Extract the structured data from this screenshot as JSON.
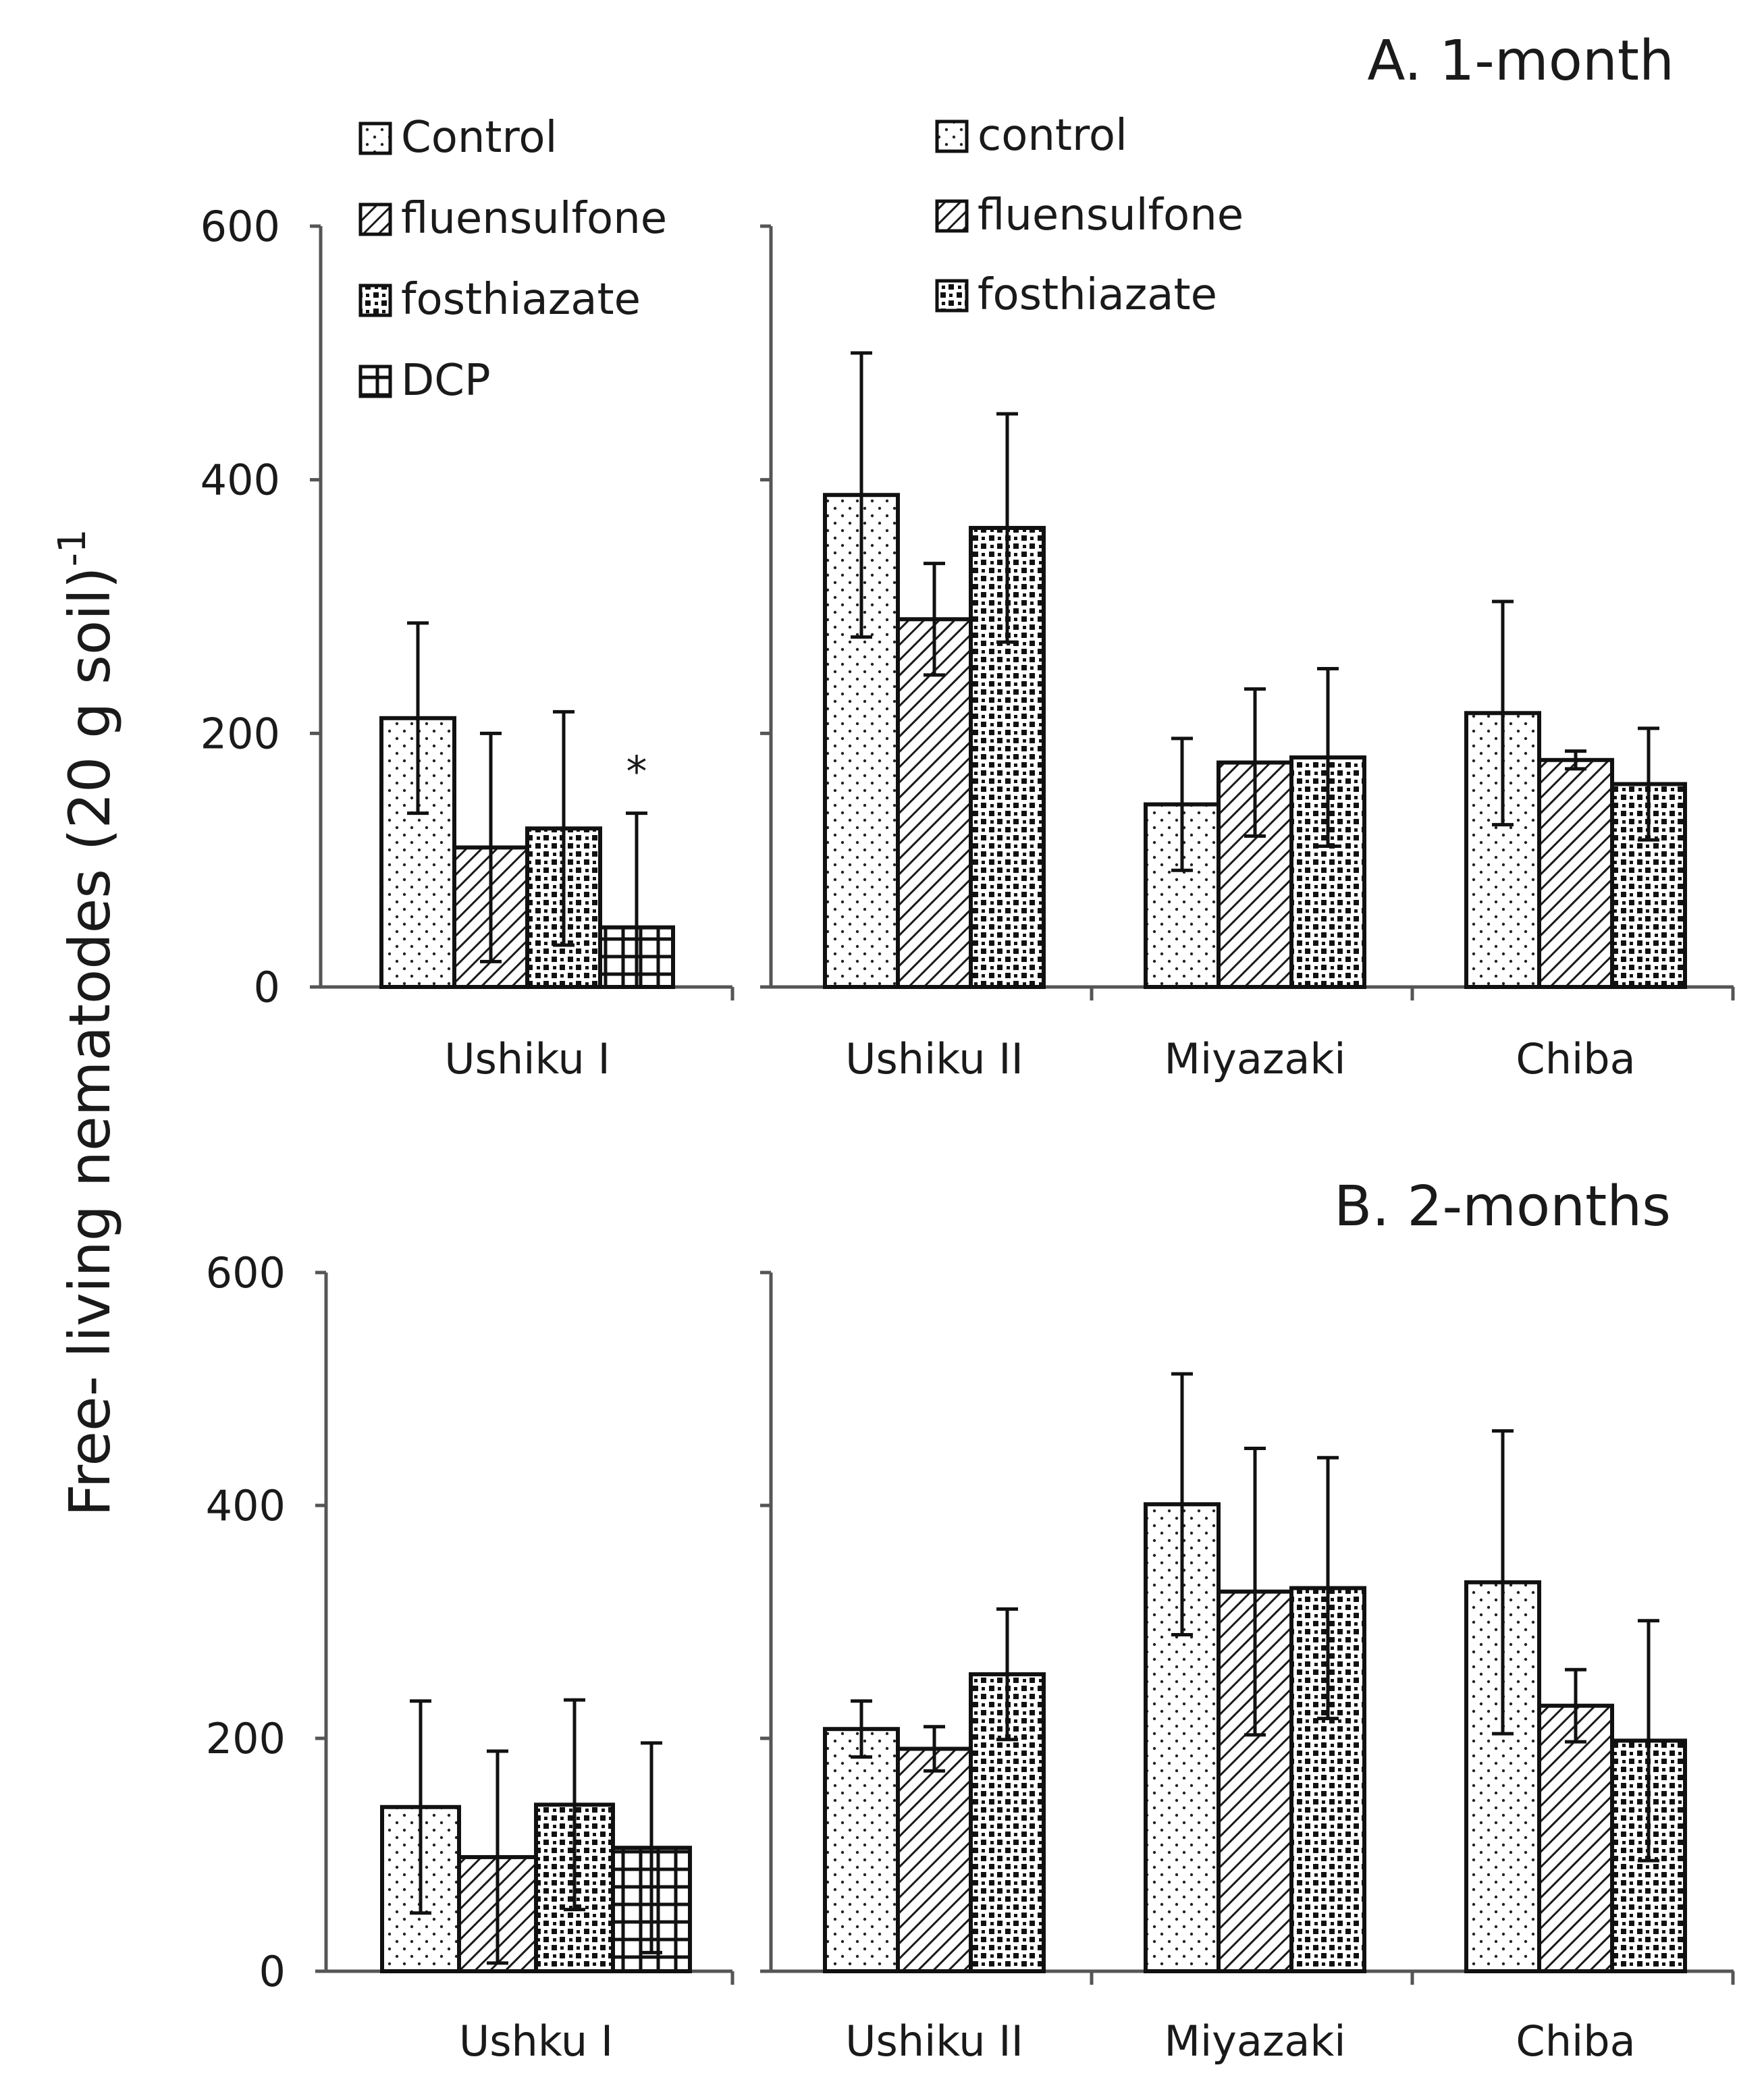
{
  "ylabel_main": "Free- living nematodes (20 g soil)",
  "ylabel_sup": "-1",
  "chart_data": [
    {
      "type": "bar",
      "panel": "A",
      "title": "A.  1-month",
      "ylabel": "Free- living nematodes (20 g soil)-1",
      "ylim": [
        0,
        600
      ],
      "yticks": [
        "0",
        "200",
        "400",
        "600"
      ],
      "groups": [
        {
          "legend": [
            "Control",
            "fluensulfone",
            "fosthiazate",
            "DCP"
          ],
          "categories": [
            "Ushiku I"
          ],
          "series": [
            {
              "name": "Control",
              "pattern": "dots",
              "values": [
                212
              ],
              "errors": [
                75
              ]
            },
            {
              "name": "fluensulfone",
              "pattern": "hatch",
              "values": [
                110
              ],
              "errors": [
                90
              ]
            },
            {
              "name": "fosthiazate",
              "pattern": "dense",
              "values": [
                125
              ],
              "errors": [
                92
              ]
            },
            {
              "name": "DCP",
              "pattern": "grid",
              "values": [
                47
              ],
              "errors": [
                90
              ]
            }
          ],
          "annotations": [
            {
              "text": "*",
              "category": "Ushiku I",
              "series": "DCP"
            }
          ]
        },
        {
          "legend": [
            "control",
            "fluensulfone",
            "fosthiazate"
          ],
          "categories": [
            "Ushiku II",
            "Miyazaki",
            "Chiba"
          ],
          "series": [
            {
              "name": "control",
              "pattern": "dots",
              "values": [
                388,
                144,
                216
              ],
              "errors": [
                112,
                52,
                88
              ]
            },
            {
              "name": "fluensulfone",
              "pattern": "hatch",
              "values": [
                290,
                177,
                179
              ],
              "errors": [
                44,
                58,
                7
              ]
            },
            {
              "name": "fosthiazate",
              "pattern": "dense",
              "values": [
                362,
                181,
                160
              ],
              "errors": [
                90,
                70,
                44
              ]
            }
          ]
        }
      ]
    },
    {
      "type": "bar",
      "panel": "B",
      "title": "B. 2-months",
      "ylabel": "Free- living nematodes (20 g soil)-1",
      "ylim": [
        0,
        600
      ],
      "yticks": [
        "0",
        "200",
        "400",
        "600"
      ],
      "groups": [
        {
          "categories": [
            "Ushku I"
          ],
          "series": [
            {
              "name": "Control",
              "pattern": "dots",
              "values": [
                141
              ],
              "errors": [
                91
              ]
            },
            {
              "name": "fluensulfone",
              "pattern": "hatch",
              "values": [
                98
              ],
              "errors": [
                91
              ]
            },
            {
              "name": "fosthiazate",
              "pattern": "dense",
              "values": [
                143
              ],
              "errors": [
                90
              ]
            },
            {
              "name": "DCP",
              "pattern": "grid",
              "values": [
                106
              ],
              "errors": [
                90
              ]
            }
          ]
        },
        {
          "categories": [
            "Ushiku II",
            "Miyazaki",
            "Chiba"
          ],
          "series": [
            {
              "name": "control",
              "pattern": "dots",
              "values": [
                208,
                401,
                334
              ],
              "errors": [
                24,
                112,
                130
              ]
            },
            {
              "name": "fluensulfone",
              "pattern": "hatch",
              "values": [
                191,
                326,
                228
              ],
              "errors": [
                19,
                123,
                31
              ]
            },
            {
              "name": "fosthiazate",
              "pattern": "dense",
              "values": [
                255,
                329,
                198
              ],
              "errors": [
                56,
                112,
                103
              ]
            }
          ]
        }
      ]
    }
  ]
}
